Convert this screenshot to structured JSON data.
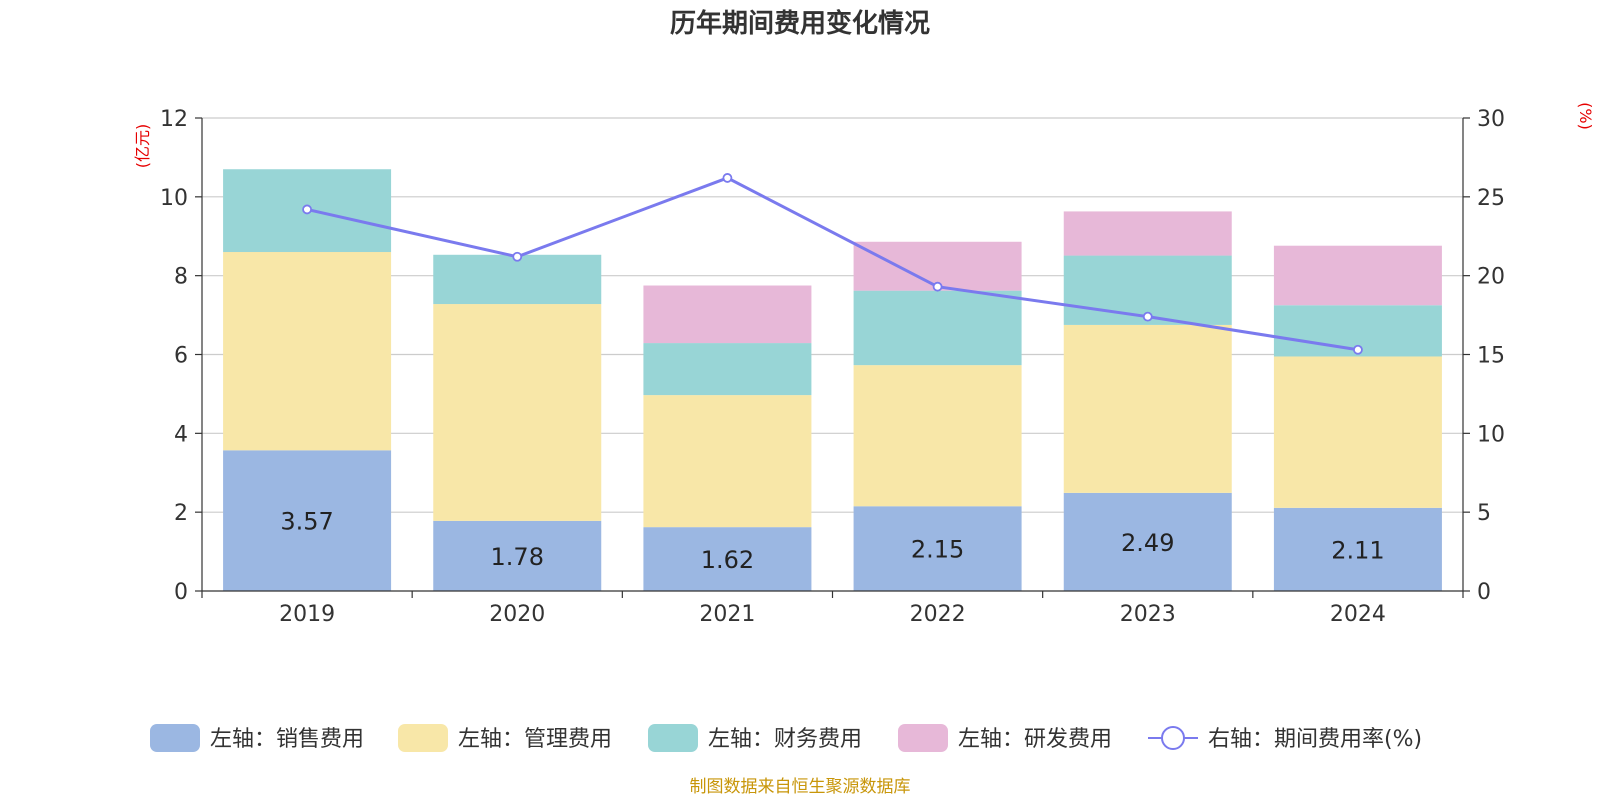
{
  "chart_data": {
    "type": "bar",
    "title": "历年期间费用变化情况",
    "categories": [
      "2019",
      "2020",
      "2021",
      "2022",
      "2023",
      "2024"
    ],
    "left_axis": {
      "unit": "(亿元)",
      "ylim": [
        0,
        12
      ],
      "ticks": [
        "0",
        "2",
        "4",
        "6",
        "8",
        "10",
        "12"
      ]
    },
    "right_axis": {
      "unit": "(%)",
      "ylim": [
        0,
        30
      ],
      "ticks": [
        "0",
        "5",
        "10",
        "15",
        "20",
        "25",
        "30"
      ]
    },
    "series": [
      {
        "name": "左轴：销售费用",
        "axis": "left",
        "kind": "bar",
        "color": "#9bb7e2",
        "values": [
          3.57,
          1.78,
          1.62,
          2.15,
          2.49,
          2.11
        ]
      },
      {
        "name": "左轴：管理费用",
        "axis": "left",
        "kind": "bar",
        "color": "#f8e7a8",
        "values": [
          5.03,
          5.5,
          3.35,
          3.58,
          4.26,
          3.84
        ]
      },
      {
        "name": "左轴：财务费用",
        "axis": "left",
        "kind": "bar",
        "color": "#98d5d6",
        "values": [
          2.1,
          1.25,
          1.32,
          1.89,
          1.76,
          1.3
        ]
      },
      {
        "name": "左轴：研发费用",
        "axis": "left",
        "kind": "bar",
        "color": "#e7b8d8",
        "values": [
          0,
          0,
          1.46,
          1.24,
          1.12,
          1.51
        ]
      },
      {
        "name": "右轴：期间费用率(%)",
        "axis": "right",
        "kind": "line",
        "color": "#7a7aee",
        "values": [
          24.2,
          21.2,
          26.2,
          19.3,
          17.4,
          15.3
        ]
      }
    ],
    "data_labels": [
      "3.57",
      "1.78",
      "1.62",
      "2.15",
      "2.49",
      "2.11"
    ],
    "grid": true,
    "legend_position": "bottom"
  },
  "source_note": "制图数据来自恒生聚源数据库"
}
